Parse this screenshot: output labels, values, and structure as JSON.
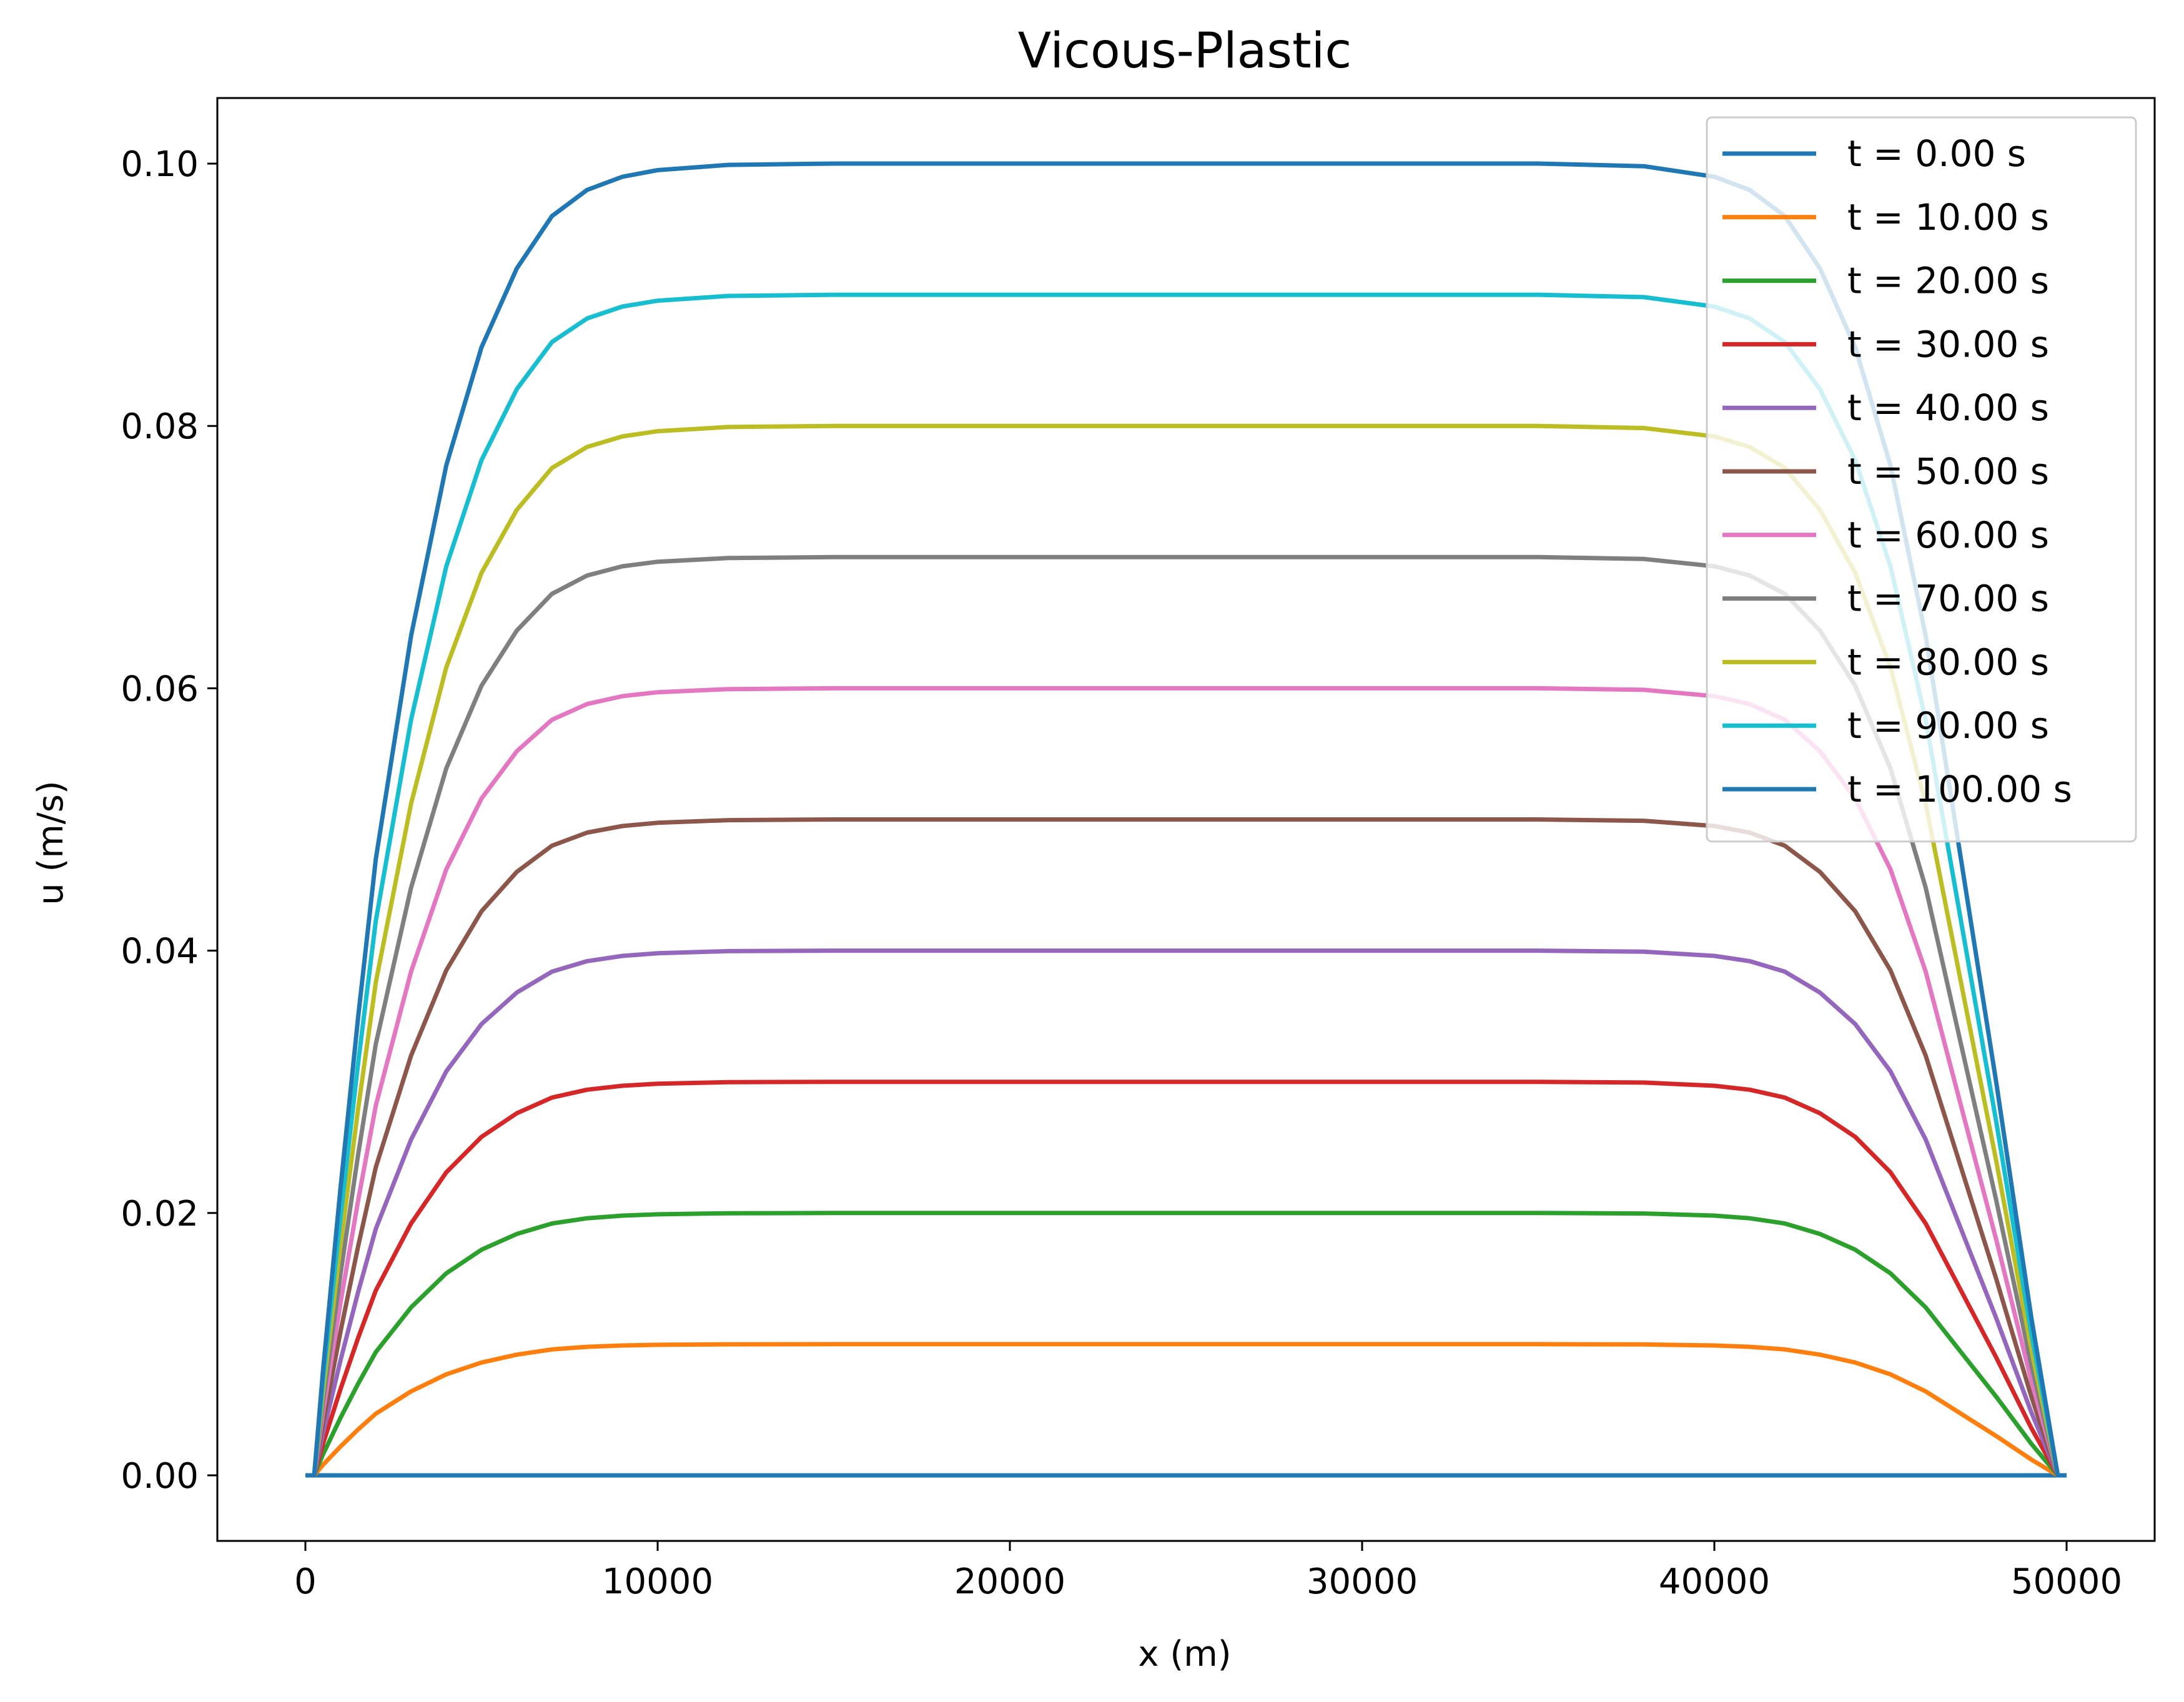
{
  "chart_data": {
    "type": "line",
    "title": "Vicous-Plastic",
    "xlabel": "x (m)",
    "ylabel": "u (m/s)",
    "xlim": [
      -2500,
      52500
    ],
    "ylim": [
      -0.005,
      0.105
    ],
    "xticks": [
      0,
      10000,
      20000,
      30000,
      40000,
      50000
    ],
    "xtick_labels": [
      "0",
      "10000",
      "20000",
      "30000",
      "40000",
      "50000"
    ],
    "yticks": [
      0.0,
      0.02,
      0.04,
      0.06,
      0.08,
      0.1
    ],
    "ytick_labels": [
      "0.00",
      "0.02",
      "0.04",
      "0.06",
      "0.08",
      "0.10"
    ],
    "grid": false,
    "legend_position": "top-right",
    "profile": {
      "x": [
        0,
        250,
        500,
        1000,
        1500,
        2000,
        3000,
        4000,
        5000,
        6000,
        7000,
        8000,
        9000,
        10000,
        12000,
        15000,
        20000,
        25000,
        30000,
        35000,
        38000,
        40000,
        41000,
        42000,
        43000,
        44000,
        45000,
        46000,
        47000,
        48000,
        48500,
        49000,
        49500,
        49750,
        50000
      ],
      "shape": [
        0.0,
        0.0,
        0.08,
        0.22,
        0.35,
        0.47,
        0.64,
        0.77,
        0.86,
        0.92,
        0.96,
        0.98,
        0.99,
        0.995,
        0.999,
        1.0,
        1.0,
        1.0,
        1.0,
        1.0,
        0.998,
        0.99,
        0.98,
        0.96,
        0.92,
        0.86,
        0.77,
        0.64,
        0.47,
        0.3,
        0.21,
        0.12,
        0.04,
        0.0,
        0.0
      ]
    },
    "series": [
      {
        "name": "t = 0.00 s",
        "color": "#1f77b4",
        "scale": 0.0
      },
      {
        "name": "t = 10.00 s",
        "color": "#ff7f0e",
        "scale": 0.01
      },
      {
        "name": "t = 20.00 s",
        "color": "#2ca02c",
        "scale": 0.02
      },
      {
        "name": "t = 30.00 s",
        "color": "#d62728",
        "scale": 0.03
      },
      {
        "name": "t = 40.00 s",
        "color": "#9467bd",
        "scale": 0.04
      },
      {
        "name": "t = 50.00 s",
        "color": "#8c564b",
        "scale": 0.05
      },
      {
        "name": "t = 60.00 s",
        "color": "#e377c2",
        "scale": 0.06
      },
      {
        "name": "t = 70.00 s",
        "color": "#7f7f7f",
        "scale": 0.07
      },
      {
        "name": "t = 80.00 s",
        "color": "#bcbd22",
        "scale": 0.08
      },
      {
        "name": "t = 90.00 s",
        "color": "#17becf",
        "scale": 0.09
      },
      {
        "name": "t = 100.00 s",
        "color": "#1f77b4",
        "scale": 0.1
      }
    ]
  }
}
